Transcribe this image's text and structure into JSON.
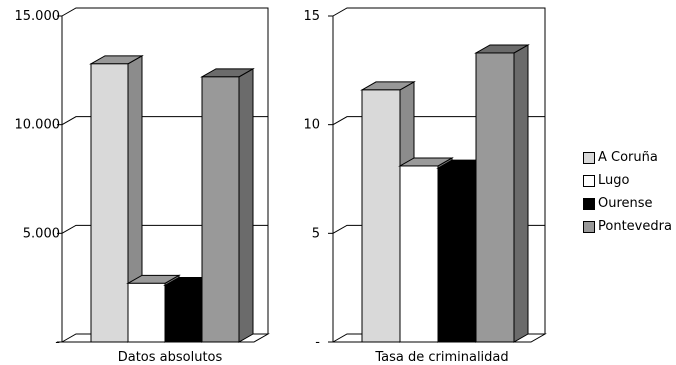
{
  "chart_data": [
    {
      "type": "bar",
      "xlabel": "Datos absolutos",
      "categories": [
        "A Coruña",
        "Lugo",
        "Ourense",
        "Pontevedra"
      ],
      "values": [
        12800,
        2700,
        2600,
        12200
      ],
      "ylim": [
        0,
        15000
      ],
      "yticks": [
        0,
        5000,
        10000,
        15000
      ],
      "ytick_labels": [
        "-",
        "5.000",
        "10.000",
        "15.000"
      ]
    },
    {
      "type": "bar",
      "xlabel": "Tasa de criminalidad",
      "categories": [
        "A Coruña",
        "Lugo",
        "Ourense",
        "Pontevedra"
      ],
      "values": [
        11.6,
        8.1,
        8.0,
        13.3
      ],
      "ylim": [
        0,
        15
      ],
      "yticks": [
        0,
        5,
        10,
        15
      ],
      "ytick_labels": [
        "-",
        "5",
        "10",
        "15"
      ]
    }
  ],
  "legend": {
    "items": [
      {
        "label": "A Coruña",
        "color": "#d9d9d9"
      },
      {
        "label": "Lugo",
        "color": "#ffffff"
      },
      {
        "label": "Ourense",
        "color": "#000000"
      },
      {
        "label": "Pontevedra",
        "color": "#999999"
      }
    ]
  }
}
